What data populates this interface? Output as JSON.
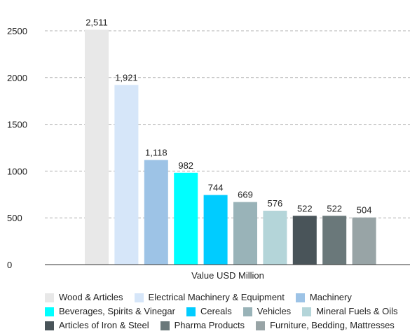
{
  "chart_data": {
    "type": "bar",
    "xlabel": "Value USD Million",
    "ylabel": "",
    "ylim": [
      0,
      2500
    ],
    "yticks": [
      0,
      500,
      1000,
      1500,
      2000,
      2500
    ],
    "grid": true,
    "legend_position": "bottom",
    "categories": [
      "Wood & Articles",
      "Electrical Machinery & Equipment",
      "Machinery",
      "Beverages, Spirits & Vinegar",
      "Cereals",
      "Vehicles",
      "Mineral Fuels & Oils",
      "Articles of Iron & Steel",
      "Pharma Products",
      "Furniture, Bedding, Mattresses"
    ],
    "values": [
      2511,
      1921,
      1118,
      982,
      744,
      669,
      576,
      522,
      522,
      504
    ],
    "value_labels": [
      "2,511",
      "1,921",
      "1,118",
      "982",
      "744",
      "669",
      "576",
      "522",
      "522",
      "504"
    ],
    "colors": [
      "#e8e8e8",
      "#d6e6f9",
      "#9dc3e6",
      "#00ffff",
      "#00ccff",
      "#99b3b8",
      "#b4d5d9",
      "#495459",
      "#6a787a",
      "#98a4a6"
    ]
  },
  "legend_rows": [
    [
      0,
      1,
      2
    ],
    [
      3,
      4,
      5,
      6
    ],
    [
      7,
      8,
      9
    ]
  ]
}
